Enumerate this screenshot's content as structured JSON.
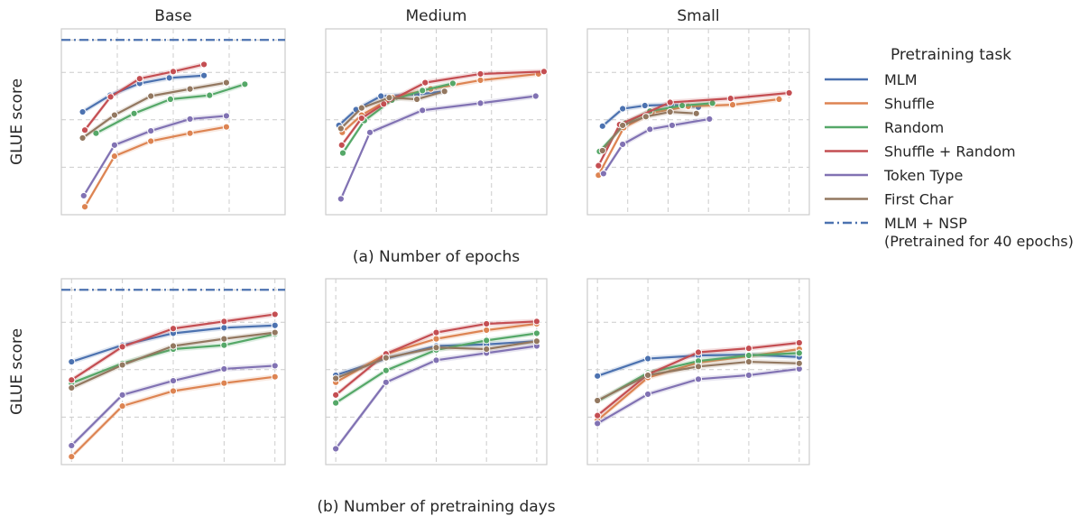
{
  "legend": {
    "title": "Pretraining task",
    "items": [
      {
        "label": "MLM",
        "color": "#4c72b0",
        "dash": false
      },
      {
        "label": "Shuffle",
        "color": "#dd8452",
        "dash": false
      },
      {
        "label": "Random",
        "color": "#55a868",
        "dash": false
      },
      {
        "label": "Shuffle + Random",
        "color": "#c44e52",
        "dash": false
      },
      {
        "label": "Token Type",
        "color": "#8172b3",
        "dash": false
      },
      {
        "label": "First Char",
        "color": "#937860",
        "dash": false
      },
      {
        "label": "MLM + NSP",
        "label2": "(Pretrained for 40 epochs)",
        "color": "#4c72b0",
        "dash": true
      }
    ]
  },
  "chart_data": [
    {
      "type": "line",
      "title": "Base",
      "xlabel": "",
      "ylabel": "GLUE score",
      "xlim": [
        0,
        4
      ],
      "ylim": [
        60,
        83.5
      ],
      "xticks": [
        0,
        1,
        2,
        3,
        4
      ],
      "yticks": [
        60,
        66,
        72,
        78,
        82.1
      ],
      "reference_line": {
        "name": "MLM + NSP",
        "y": 82.1
      },
      "series": [
        {
          "name": "MLM",
          "x": [
            0.38,
            0.87,
            1.4,
            1.93,
            2.55
          ],
          "y": [
            73.0,
            75.1,
            76.6,
            77.3,
            77.6
          ]
        },
        {
          "name": "Shuffle",
          "x": [
            0.42,
            0.95,
            1.6,
            2.3,
            2.95
          ],
          "y": [
            61.0,
            67.4,
            69.3,
            70.3,
            71.1
          ]
        },
        {
          "name": "Random",
          "x": [
            0.62,
            1.3,
            1.95,
            2.65,
            3.28
          ],
          "y": [
            70.3,
            72.8,
            74.6,
            75.1,
            76.5
          ]
        },
        {
          "name": "Shuffle + Random",
          "x": [
            0.42,
            0.88,
            1.4,
            2.0,
            2.55
          ],
          "y": [
            70.7,
            74.9,
            77.2,
            78.1,
            79.0
          ]
        },
        {
          "name": "Token Type",
          "x": [
            0.4,
            0.95,
            1.6,
            2.3,
            2.95
          ],
          "y": [
            62.4,
            68.8,
            70.6,
            72.1,
            72.5
          ]
        },
        {
          "name": "First Char",
          "x": [
            0.38,
            0.95,
            1.6,
            2.3,
            2.95
          ],
          "y": [
            69.7,
            72.6,
            75.0,
            75.9,
            76.7
          ]
        }
      ]
    },
    {
      "type": "line",
      "title": "Medium",
      "xlabel": "(a) Number of epochs",
      "ylabel": "",
      "xlim": [
        0,
        8
      ],
      "ylim": [
        60,
        83.5
      ],
      "xticks": [
        0,
        2,
        4,
        6,
        8
      ],
      "yticks": [
        60,
        66,
        72,
        78
      ],
      "series": [
        {
          "name": "MLM",
          "x": [
            0.48,
            1.1,
            2.0,
            3.3,
            4.3
          ],
          "y": [
            71.3,
            73.3,
            75.0,
            75.2,
            75.6
          ]
        },
        {
          "name": "Shuffle",
          "x": [
            0.6,
            1.3,
            2.4,
            3.8,
            5.6,
            7.7
          ],
          "y": [
            70.4,
            72.6,
            74.8,
            75.9,
            77.0,
            77.8
          ]
        },
        {
          "name": "Random",
          "x": [
            0.62,
            1.4,
            2.4,
            3.5,
            4.6
          ],
          "y": [
            67.8,
            71.9,
            74.5,
            75.7,
            76.6
          ]
        },
        {
          "name": "Shuffle + Random",
          "x": [
            0.58,
            1.3,
            2.1,
            3.6,
            5.6,
            7.9
          ],
          "y": [
            68.8,
            72.2,
            74.0,
            76.7,
            77.8,
            78.1
          ]
        },
        {
          "name": "Token Type",
          "x": [
            0.55,
            1.6,
            3.5,
            5.6,
            7.6
          ],
          "y": [
            62.0,
            70.4,
            73.2,
            74.1,
            75.0
          ]
        },
        {
          "name": "First Char",
          "x": [
            0.55,
            1.3,
            2.3,
            3.3,
            4.3
          ],
          "y": [
            70.9,
            73.5,
            74.8,
            74.6,
            75.6
          ]
        }
      ]
    },
    {
      "type": "line",
      "title": "Small",
      "xlabel": "",
      "ylabel": "",
      "xlim": [
        0,
        11
      ],
      "ylim": [
        60,
        83.5
      ],
      "xticks": [
        0,
        2,
        4,
        6,
        8,
        10
      ],
      "yticks": [
        60,
        66,
        72,
        78
      ],
      "series": [
        {
          "name": "MLM",
          "x": [
            0.75,
            1.75,
            2.85,
            4.15,
            5.5
          ],
          "y": [
            71.2,
            73.4,
            73.8,
            73.9,
            73.6
          ]
        },
        {
          "name": "Shuffle",
          "x": [
            0.55,
            1.8,
            3.2,
            5.0,
            7.2,
            9.5
          ],
          "y": [
            65.0,
            71.0,
            72.9,
            73.7,
            73.9,
            74.6
          ]
        },
        {
          "name": "Random",
          "x": [
            0.6,
            1.9,
            3.1,
            4.7,
            6.2
          ],
          "y": [
            68.0,
            71.6,
            73.1,
            73.8,
            74.1
          ]
        },
        {
          "name": "Shuffle + Random",
          "x": [
            0.55,
            1.6,
            4.1,
            7.1,
            10.0
          ],
          "y": [
            66.2,
            71.4,
            74.2,
            74.7,
            75.4
          ]
        },
        {
          "name": "Token Type",
          "x": [
            0.8,
            1.75,
            3.1,
            4.2,
            6.05
          ],
          "y": [
            65.2,
            68.9,
            70.8,
            71.3,
            72.1
          ]
        },
        {
          "name": "First Char",
          "x": [
            0.75,
            1.75,
            2.9,
            4.1,
            5.4
          ],
          "y": [
            68.1,
            71.3,
            72.4,
            73.0,
            72.8
          ]
        }
      ]
    },
    {
      "type": "line",
      "title": "",
      "xlabel": "",
      "ylabel": "GLUE score",
      "xlim": [
        0.8,
        5.2
      ],
      "ylim": [
        60,
        83.5
      ],
      "xticks": [
        1,
        2,
        3,
        4,
        5
      ],
      "yticks": [
        60,
        66,
        72,
        78,
        82.1
      ],
      "reference_line": {
        "name": "MLM + NSP",
        "y": 82.1
      },
      "series": [
        {
          "name": "MLM",
          "x": [
            1,
            2,
            3,
            4,
            5
          ],
          "y": [
            73.0,
            75.1,
            76.6,
            77.3,
            77.6
          ]
        },
        {
          "name": "Shuffle",
          "x": [
            1,
            2,
            3,
            4,
            5
          ],
          "y": [
            61.0,
            67.4,
            69.3,
            70.3,
            71.1
          ]
        },
        {
          "name": "Random",
          "x": [
            1,
            2,
            3,
            4,
            5
          ],
          "y": [
            70.3,
            72.8,
            74.6,
            75.1,
            76.5
          ]
        },
        {
          "name": "Shuffle + Random",
          "x": [
            1,
            2,
            3,
            4,
            5
          ],
          "y": [
            70.7,
            74.9,
            77.2,
            78.1,
            79.0
          ]
        },
        {
          "name": "Token Type",
          "x": [
            1,
            2,
            3,
            4,
            5
          ],
          "y": [
            62.4,
            68.8,
            70.6,
            72.1,
            72.5
          ]
        },
        {
          "name": "First Char",
          "x": [
            1,
            2,
            3,
            4,
            5
          ],
          "y": [
            69.7,
            72.6,
            75.0,
            75.9,
            76.7
          ]
        }
      ]
    },
    {
      "type": "line",
      "title": "",
      "xlabel": "(b) Number of pretraining days",
      "ylabel": "",
      "xlim": [
        0.8,
        5.2
      ],
      "ylim": [
        60,
        83.5
      ],
      "xticks": [
        1,
        2,
        3,
        4,
        5
      ],
      "yticks": [
        60,
        66,
        72,
        78
      ],
      "series": [
        {
          "name": "MLM",
          "x": [
            1,
            2,
            3,
            4,
            5
          ],
          "y": [
            71.3,
            73.4,
            75.0,
            75.2,
            75.6
          ]
        },
        {
          "name": "Shuffle",
          "x": [
            1,
            2,
            3,
            4,
            5
          ],
          "y": [
            70.4,
            74.0,
            75.9,
            77.0,
            77.8
          ]
        },
        {
          "name": "Random",
          "x": [
            1,
            2,
            3,
            4,
            5
          ],
          "y": [
            67.8,
            71.9,
            74.5,
            75.7,
            76.6
          ]
        },
        {
          "name": "Shuffle + Random",
          "x": [
            1,
            2,
            3,
            4,
            5
          ],
          "y": [
            68.8,
            74.0,
            76.7,
            77.8,
            78.1
          ]
        },
        {
          "name": "Token Type",
          "x": [
            1,
            2,
            3,
            4,
            5
          ],
          "y": [
            62.0,
            70.4,
            73.2,
            74.1,
            75.0
          ]
        },
        {
          "name": "First Char",
          "x": [
            1,
            2,
            3,
            4,
            5
          ],
          "y": [
            70.9,
            73.5,
            74.8,
            74.6,
            75.6
          ]
        }
      ]
    },
    {
      "type": "line",
      "title": "",
      "xlabel": "",
      "ylabel": "",
      "xlim": [
        0.8,
        5.2
      ],
      "ylim": [
        60,
        83.5
      ],
      "xticks": [
        1,
        2,
        3,
        4,
        5
      ],
      "yticks": [
        60,
        66,
        72,
        78
      ],
      "series": [
        {
          "name": "MLM",
          "x": [
            1,
            2,
            3,
            4,
            5
          ],
          "y": [
            71.2,
            73.4,
            73.8,
            73.9,
            73.6
          ]
        },
        {
          "name": "Shuffle",
          "x": [
            1,
            2,
            3,
            4,
            5
          ],
          "y": [
            65.6,
            71.0,
            72.9,
            73.7,
            74.6
          ]
        },
        {
          "name": "Random",
          "x": [
            1,
            2,
            3,
            4,
            5
          ],
          "y": [
            68.0,
            71.6,
            73.1,
            73.8,
            74.1
          ]
        },
        {
          "name": "Shuffle + Random",
          "x": [
            1,
            2,
            3,
            4,
            5
          ],
          "y": [
            66.2,
            71.4,
            74.2,
            74.7,
            75.4
          ]
        },
        {
          "name": "Token Type",
          "x": [
            1,
            2,
            3,
            4,
            5
          ],
          "y": [
            65.2,
            68.9,
            70.8,
            71.3,
            72.1
          ]
        },
        {
          "name": "First Char",
          "x": [
            1,
            2,
            3,
            4,
            5
          ],
          "y": [
            68.1,
            71.3,
            72.4,
            73.0,
            72.8
          ]
        }
      ]
    }
  ]
}
